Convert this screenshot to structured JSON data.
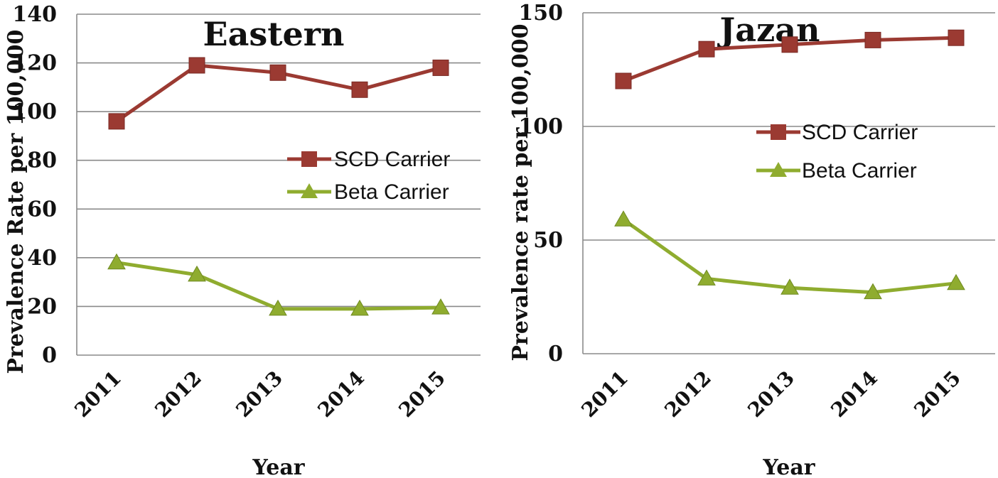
{
  "chart_data": [
    {
      "type": "line",
      "title": "Eastern",
      "xlabel": "Year",
      "ylabel": "Prevalence Rate per 100,000",
      "categories": [
        "2011",
        "2012",
        "2013",
        "2014",
        "2015"
      ],
      "ylim": [
        0,
        140
      ],
      "yticks": [
        "0",
        "20",
        "40",
        "60",
        "80",
        "100",
        "120",
        "140"
      ],
      "grid": true,
      "legend_position": "right",
      "series": [
        {
          "name": "SCD Carrier",
          "values": [
            96,
            119,
            116,
            109,
            118
          ],
          "color": "#9b3a32",
          "marker": "square"
        },
        {
          "name": "Beta Carrier",
          "values": [
            38,
            33,
            19,
            19,
            19.5
          ],
          "color": "#8fac2f",
          "marker": "triangle"
        }
      ]
    },
    {
      "type": "line",
      "title": "Jazan",
      "xlabel": "Year",
      "ylabel": "Prevalence rate per 100,000",
      "categories": [
        "2011",
        "2012",
        "2013",
        "2014",
        "2015"
      ],
      "ylim": [
        0,
        150
      ],
      "yticks": [
        "0",
        "50",
        "100",
        "150"
      ],
      "grid": true,
      "legend_position": "right",
      "series": [
        {
          "name": "SCD Carrier",
          "values": [
            120,
            134,
            136,
            138,
            139
          ],
          "color": "#9b3a32",
          "marker": "square"
        },
        {
          "name": "Beta Carrier",
          "values": [
            59,
            33,
            29,
            27,
            31
          ],
          "color": "#8fac2f",
          "marker": "triangle"
        }
      ]
    }
  ]
}
